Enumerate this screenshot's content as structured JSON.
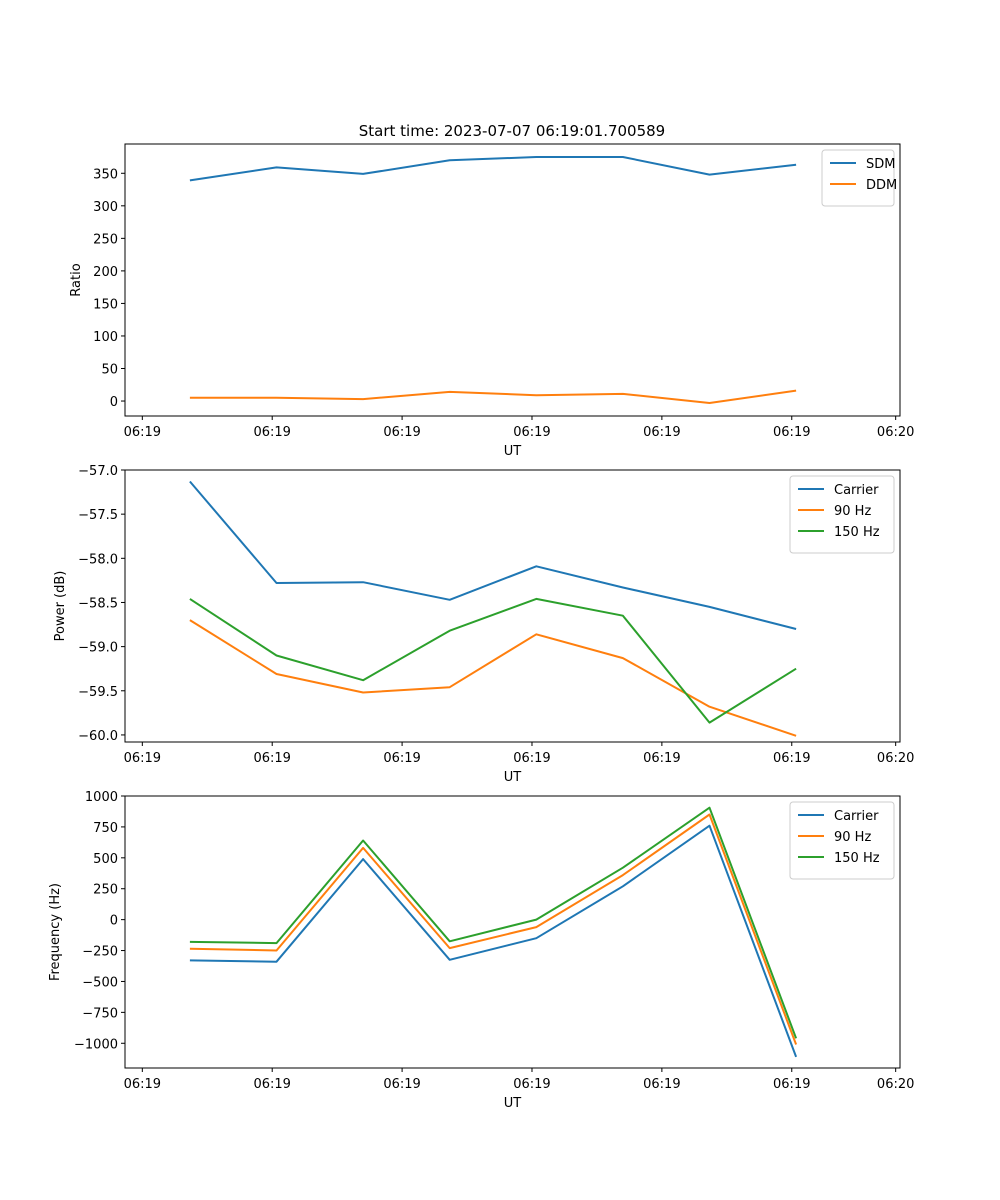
{
  "figure_title": "Start time: 2023-07-07 06:19:01.700589",
  "chart_data": [
    {
      "type": "line",
      "title": "Start time: 2023-07-07 06:19:01.700589",
      "xlabel": "UT",
      "ylabel": "Ratio",
      "x": [
        1,
        2,
        3,
        4,
        5,
        6,
        7,
        8
      ],
      "xlim": [
        0.25,
        9.2
      ],
      "x_ticks": [
        0.45,
        1.95,
        3.45,
        4.95,
        6.45,
        7.95,
        9.15
      ],
      "x_tick_labels": [
        "06:19",
        "06:19",
        "06:19",
        "06:19",
        "06:19",
        "06:19",
        "06:20"
      ],
      "ylim": [
        -23,
        395
      ],
      "y_ticks": [
        0,
        50,
        100,
        150,
        200,
        250,
        300,
        350
      ],
      "y_tick_labels": [
        "0",
        "50",
        "100",
        "150",
        "200",
        "250",
        "300",
        "350"
      ],
      "legend_position": "top-right",
      "series": [
        {
          "name": "SDM",
          "color": "#1f77b4",
          "values": [
            339,
            359,
            349,
            370,
            375,
            375,
            348,
            363
          ]
        },
        {
          "name": "DDM",
          "color": "#ff7f0e",
          "values": [
            5,
            5,
            3,
            14,
            9,
            11,
            -3,
            16
          ]
        }
      ]
    },
    {
      "type": "line",
      "title": "",
      "xlabel": "UT",
      "ylabel": "Power (dB)",
      "x": [
        1,
        2,
        3,
        4,
        5,
        6,
        7,
        8
      ],
      "xlim": [
        0.25,
        9.2
      ],
      "x_ticks": [
        0.45,
        1.95,
        3.45,
        4.95,
        6.45,
        7.95,
        9.15
      ],
      "x_tick_labels": [
        "06:19",
        "06:19",
        "06:19",
        "06:19",
        "06:19",
        "06:19",
        "06:20"
      ],
      "ylim": [
        -60.08,
        -57.0
      ],
      "y_ticks": [
        -57.0,
        -57.5,
        -58.0,
        -58.5,
        -59.0,
        -59.5,
        -60.0
      ],
      "y_tick_labels": [
        "−57.0",
        "−57.5",
        "−58.0",
        "−58.5",
        "−59.0",
        "−59.5",
        "−60.0"
      ],
      "legend_position": "top-right",
      "series": [
        {
          "name": "Carrier",
          "color": "#1f77b4",
          "values": [
            -57.13,
            -58.28,
            -58.27,
            -58.47,
            -58.09,
            -58.33,
            -58.55,
            -58.8
          ]
        },
        {
          "name": "90 Hz",
          "color": "#ff7f0e",
          "values": [
            -58.7,
            -59.31,
            -59.52,
            -59.46,
            -58.86,
            -59.13,
            -59.68,
            -60.01
          ]
        },
        {
          "name": "150 Hz",
          "color": "#2ca02c",
          "values": [
            -58.46,
            -59.1,
            -59.38,
            -58.82,
            -58.46,
            -58.65,
            -59.86,
            -59.25
          ]
        }
      ]
    },
    {
      "type": "line",
      "title": "",
      "xlabel": "UT",
      "ylabel": "Frequency (Hz)",
      "x": [
        1,
        2,
        3,
        4,
        5,
        6,
        7,
        8
      ],
      "xlim": [
        0.25,
        9.2
      ],
      "x_ticks": [
        0.45,
        1.95,
        3.45,
        4.95,
        6.45,
        7.95,
        9.15
      ],
      "x_tick_labels": [
        "06:19",
        "06:19",
        "06:19",
        "06:19",
        "06:19",
        "06:19",
        "06:20"
      ],
      "ylim": [
        -1200,
        1000
      ],
      "y_ticks": [
        1000,
        750,
        500,
        250,
        0,
        -250,
        -500,
        -750,
        -1000
      ],
      "y_tick_labels": [
        "1000",
        "750",
        "500",
        "250",
        "0",
        "−250",
        "−500",
        "−750",
        "−1000"
      ],
      "legend_position": "top-right",
      "series": [
        {
          "name": "Carrier",
          "color": "#1f77b4",
          "values": [
            -330,
            -340,
            490,
            -325,
            -150,
            270,
            760,
            -1110
          ]
        },
        {
          "name": "90 Hz",
          "color": "#ff7f0e",
          "values": [
            -235,
            -250,
            580,
            -230,
            -60,
            360,
            850,
            -1010
          ]
        },
        {
          "name": "150 Hz",
          "color": "#2ca02c",
          "values": [
            -180,
            -190,
            640,
            -175,
            0,
            420,
            905,
            -960
          ]
        }
      ]
    }
  ]
}
